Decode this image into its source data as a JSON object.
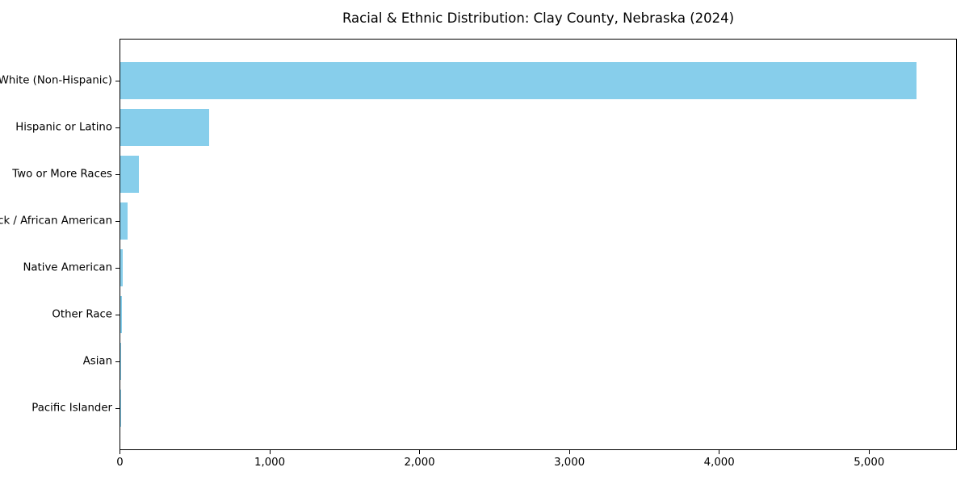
{
  "colors": {
    "bar": "#87CEEB",
    "spine": "#000000",
    "text": "#000000",
    "background": "#ffffff"
  },
  "chart_data": {
    "type": "bar",
    "orientation": "horizontal",
    "title": "Racial & Ethnic Distribution: Clay County, Nebraska (2024)",
    "categories": [
      "White (Non-Hispanic)",
      "Hispanic or Latino",
      "Two or More Races",
      "Black / African American",
      "Native American",
      "Other Race",
      "Asian",
      "Pacific Islander"
    ],
    "values": [
      5313,
      592,
      123,
      50,
      15,
      10,
      5,
      2
    ],
    "xlabel": "",
    "ylabel": "",
    "xlim": [
      0,
      5578
    ],
    "xticks": [
      0,
      1000,
      2000,
      3000,
      4000,
      5000
    ],
    "xtick_labels": [
      "0",
      "1,000",
      "2,000",
      "3,000",
      "4,000",
      "5,000"
    ],
    "bar_color": "#87CEEB",
    "grid": false,
    "legend": null
  }
}
